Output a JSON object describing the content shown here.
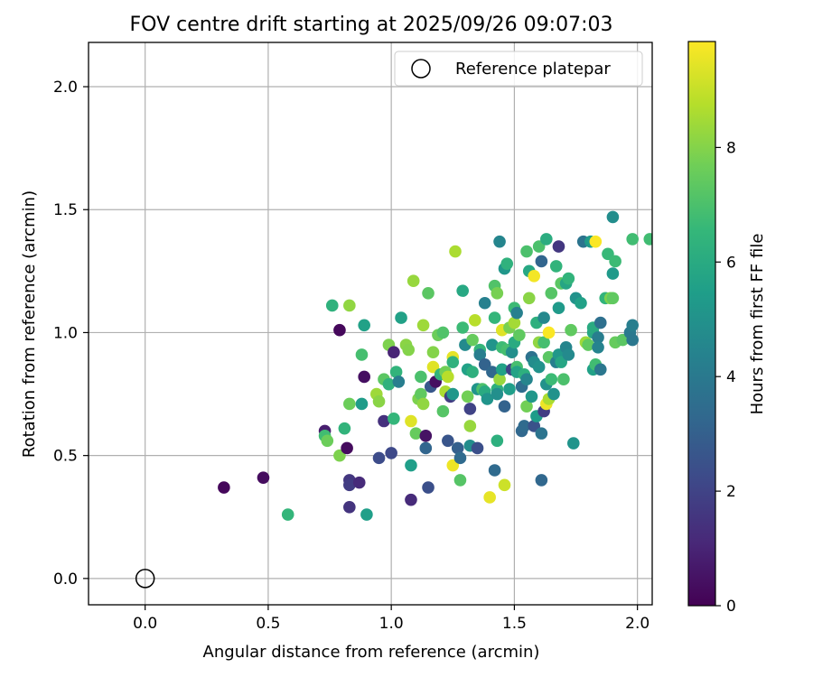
{
  "chart_data": {
    "type": "scatter",
    "title": "FOV centre drift starting at 2025/09/26 09:07:03",
    "xlabel": "Angular distance from reference (arcmin)",
    "ylabel": "Rotation from reference (arcmin)",
    "xlim": [
      -0.23,
      2.06
    ],
    "ylim": [
      -0.107,
      2.18
    ],
    "xticks": [
      {
        "value": 0.0,
        "label": "0.0"
      },
      {
        "value": 0.5,
        "label": "0.5"
      },
      {
        "value": 1.0,
        "label": "1.0"
      },
      {
        "value": 1.5,
        "label": "1.5"
      },
      {
        "value": 2.0,
        "label": "2.0"
      }
    ],
    "yticks": [
      {
        "value": 0.0,
        "label": "0.0"
      },
      {
        "value": 0.5,
        "label": "0.5"
      },
      {
        "value": 1.0,
        "label": "1.0"
      },
      {
        "value": 1.5,
        "label": "1.5"
      },
      {
        "value": 2.0,
        "label": "2.0"
      }
    ],
    "grid": true,
    "legend": {
      "position": "top-right",
      "entries": [
        {
          "label": "Reference platepar",
          "marker": "open-circle"
        }
      ]
    },
    "reference_point": {
      "x": 0.0,
      "y": 0.0,
      "label": "Reference platepar"
    },
    "colorbar": {
      "label": "Hours from first FF file",
      "cmap": "viridis",
      "range": [
        0,
        9.85
      ],
      "ticks": [
        {
          "value": 0,
          "label": "0"
        },
        {
          "value": 2,
          "label": "2"
        },
        {
          "value": 4,
          "label": "4"
        },
        {
          "value": 6,
          "label": "6"
        },
        {
          "value": 8,
          "label": "8"
        }
      ]
    },
    "colormap_stops": [
      "#440154",
      "#482878",
      "#3e4989",
      "#31688e",
      "#26828e",
      "#1f9e89",
      "#35b779",
      "#6ece58",
      "#b5de2b",
      "#fde725"
    ],
    "points": [
      [
        0.32,
        0.37,
        0.2
      ],
      [
        0.48,
        0.41,
        0.3
      ],
      [
        0.58,
        0.26,
        6.5
      ],
      [
        0.73,
        0.6,
        0.8
      ],
      [
        0.73,
        0.58,
        6.8
      ],
      [
        0.74,
        0.56,
        7.6
      ],
      [
        0.76,
        1.11,
        6.3
      ],
      [
        0.79,
        1.01,
        0.2
      ],
      [
        0.79,
        0.5,
        7.9
      ],
      [
        0.81,
        0.61,
        6.4
      ],
      [
        0.82,
        0.53,
        0.3
      ],
      [
        0.83,
        0.71,
        7.6
      ],
      [
        0.83,
        1.11,
        8.2
      ],
      [
        0.83,
        0.4,
        1.6
      ],
      [
        0.83,
        0.38,
        1.8
      ],
      [
        0.83,
        0.29,
        1.5
      ],
      [
        0.87,
        0.39,
        1.2
      ],
      [
        0.88,
        0.91,
        6.9
      ],
      [
        0.88,
        0.71,
        5.4
      ],
      [
        0.89,
        1.03,
        5.6
      ],
      [
        0.89,
        0.82,
        0.4
      ],
      [
        0.9,
        0.26,
        5.5
      ],
      [
        0.94,
        0.75,
        8.4
      ],
      [
        0.95,
        0.72,
        8.1
      ],
      [
        0.95,
        0.49,
        2.3
      ],
      [
        0.97,
        0.81,
        7.3
      ],
      [
        0.97,
        0.64,
        1.4
      ],
      [
        0.99,
        0.79,
        6.3
      ],
      [
        0.99,
        0.95,
        7.9
      ],
      [
        1.0,
        0.51,
        2.2
      ],
      [
        1.01,
        0.92,
        1.0
      ],
      [
        1.01,
        0.65,
        6.5
      ],
      [
        1.02,
        0.84,
        6.4
      ],
      [
        1.03,
        0.8,
        4.2
      ],
      [
        1.04,
        1.06,
        5.6
      ],
      [
        1.06,
        0.95,
        8.1
      ],
      [
        1.07,
        0.93,
        8.0
      ],
      [
        1.08,
        0.64,
        9.4
      ],
      [
        1.08,
        0.46,
        5.5
      ],
      [
        1.08,
        0.32,
        1.2
      ],
      [
        1.09,
        1.21,
        8.3
      ],
      [
        1.1,
        0.59,
        7.5
      ],
      [
        1.11,
        0.73,
        7.9
      ],
      [
        1.12,
        0.82,
        7.0
      ],
      [
        1.12,
        0.75,
        7.4
      ],
      [
        1.13,
        0.71,
        8.2
      ],
      [
        1.13,
        1.03,
        8.4
      ],
      [
        1.14,
        0.58,
        0.5
      ],
      [
        1.14,
        0.53,
        3.2
      ],
      [
        1.15,
        0.37,
        2.4
      ],
      [
        1.15,
        1.16,
        7.3
      ],
      [
        1.16,
        0.78,
        2.7
      ],
      [
        1.17,
        0.86,
        9.4
      ],
      [
        1.17,
        0.92,
        8.0
      ],
      [
        1.18,
        0.8,
        0.4
      ],
      [
        1.19,
        0.99,
        7.6
      ],
      [
        1.2,
        0.83,
        6.4
      ],
      [
        1.21,
        0.68,
        7.2
      ],
      [
        1.21,
        1.0,
        7.1
      ],
      [
        1.22,
        0.76,
        8.6
      ],
      [
        1.22,
        0.84,
        7.7
      ],
      [
        1.23,
        0.56,
        2.6
      ],
      [
        1.23,
        0.82,
        8.8
      ],
      [
        1.24,
        0.74,
        1.8
      ],
      [
        1.25,
        0.9,
        9.5
      ],
      [
        1.25,
        0.46,
        9.6
      ],
      [
        1.25,
        0.75,
        5.2
      ],
      [
        1.25,
        0.88,
        6.3
      ],
      [
        1.26,
        1.33,
        8.6
      ],
      [
        1.27,
        0.53,
        3.0
      ],
      [
        1.28,
        0.4,
        7.2
      ],
      [
        1.28,
        0.49,
        3.4
      ],
      [
        1.29,
        1.17,
        5.9
      ],
      [
        1.29,
        1.02,
        6.7
      ],
      [
        1.3,
        0.95,
        4.7
      ],
      [
        1.31,
        0.85,
        5.6
      ],
      [
        1.31,
        0.74,
        7.7
      ],
      [
        1.32,
        0.62,
        8.3
      ],
      [
        1.32,
        0.54,
        4.8
      ],
      [
        1.32,
        0.69,
        2.0
      ],
      [
        1.33,
        0.84,
        6.2
      ],
      [
        1.33,
        0.97,
        7.5
      ],
      [
        1.34,
        1.05,
        8.8
      ],
      [
        1.35,
        0.77,
        5.1
      ],
      [
        1.35,
        0.53,
        2.4
      ],
      [
        1.36,
        0.93,
        6.5
      ],
      [
        1.36,
        0.91,
        4.2
      ],
      [
        1.37,
        0.77,
        7.0
      ],
      [
        1.38,
        0.76,
        6.0
      ],
      [
        1.38,
        0.87,
        3.1
      ],
      [
        1.38,
        1.12,
        4.3
      ],
      [
        1.39,
        0.73,
        5.1
      ],
      [
        1.4,
        0.33,
        9.5
      ],
      [
        1.41,
        0.84,
        3.3
      ],
      [
        1.41,
        0.95,
        5.1
      ],
      [
        1.42,
        1.06,
        6.5
      ],
      [
        1.42,
        1.19,
        7.1
      ],
      [
        1.42,
        0.44,
        3.4
      ],
      [
        1.43,
        1.16,
        7.8
      ],
      [
        1.43,
        0.77,
        6.2
      ],
      [
        1.43,
        0.75,
        4.9
      ],
      [
        1.43,
        0.56,
        6.2
      ],
      [
        1.44,
        0.81,
        8.3
      ],
      [
        1.44,
        1.37,
        4.5
      ],
      [
        1.45,
        0.94,
        6.7
      ],
      [
        1.45,
        1.01,
        9.4
      ],
      [
        1.45,
        0.85,
        5.6
      ],
      [
        1.46,
        1.26,
        5.2
      ],
      [
        1.46,
        0.7,
        3.1
      ],
      [
        1.46,
        0.38,
        9.1
      ],
      [
        1.47,
        1.28,
        6.3
      ],
      [
        1.47,
        0.93,
        6.9
      ],
      [
        1.48,
        1.02,
        7.8
      ],
      [
        1.48,
        0.77,
        5.5
      ],
      [
        1.49,
        0.85,
        2.0
      ],
      [
        1.49,
        0.92,
        4.9
      ],
      [
        1.5,
        1.04,
        8.5
      ],
      [
        1.5,
        0.96,
        6.0
      ],
      [
        1.5,
        1.1,
        6.7
      ],
      [
        1.51,
        0.86,
        6.9
      ],
      [
        1.51,
        0.84,
        5.7
      ],
      [
        1.51,
        1.08,
        4.3
      ],
      [
        1.52,
        0.99,
        7.4
      ],
      [
        1.53,
        0.78,
        3.5
      ],
      [
        1.53,
        0.6,
        3.3
      ],
      [
        1.54,
        0.83,
        6.2
      ],
      [
        1.54,
        0.62,
        3.4
      ],
      [
        1.55,
        0.7,
        7.7
      ],
      [
        1.55,
        0.81,
        4.5
      ],
      [
        1.55,
        1.33,
        7.0
      ],
      [
        1.56,
        1.25,
        5.9
      ],
      [
        1.56,
        1.14,
        8.1
      ],
      [
        1.57,
        0.74,
        5.2
      ],
      [
        1.57,
        0.9,
        3.7
      ],
      [
        1.58,
        0.88,
        4.8
      ],
      [
        1.58,
        1.23,
        9.7
      ],
      [
        1.58,
        0.62,
        2.5
      ],
      [
        1.59,
        1.04,
        6.2
      ],
      [
        1.59,
        0.66,
        5.4
      ],
      [
        1.6,
        1.35,
        7.0
      ],
      [
        1.6,
        0.96,
        8.2
      ],
      [
        1.6,
        0.86,
        5.0
      ],
      [
        1.61,
        1.29,
        3.2
      ],
      [
        1.61,
        0.59,
        3.8
      ],
      [
        1.61,
        0.4,
        3.3
      ],
      [
        1.62,
        0.96,
        6.9
      ],
      [
        1.62,
        0.68,
        1.8
      ],
      [
        1.62,
        1.06,
        4.6
      ],
      [
        1.63,
        1.38,
        6.1
      ],
      [
        1.63,
        0.71,
        9.6
      ],
      [
        1.63,
        0.79,
        5.0
      ],
      [
        1.64,
        0.9,
        7.3
      ],
      [
        1.64,
        0.73,
        8.6
      ],
      [
        1.64,
        1.0,
        9.8
      ],
      [
        1.65,
        1.16,
        7.2
      ],
      [
        1.65,
        0.81,
        6.7
      ],
      [
        1.66,
        0.75,
        5.0
      ],
      [
        1.67,
        1.27,
        6.4
      ],
      [
        1.67,
        0.88,
        4.2
      ],
      [
        1.68,
        1.35,
        1.6
      ],
      [
        1.68,
        1.1,
        5.3
      ],
      [
        1.68,
        0.91,
        5.2
      ],
      [
        1.69,
        0.88,
        5.8
      ],
      [
        1.69,
        1.2,
        7.3
      ],
      [
        1.7,
        0.81,
        7.0
      ],
      [
        1.71,
        0.94,
        4.5
      ],
      [
        1.71,
        1.2,
        5.8
      ],
      [
        1.72,
        1.22,
        6.4
      ],
      [
        1.72,
        0.91,
        4.7
      ],
      [
        1.73,
        1.01,
        7.4
      ],
      [
        1.74,
        0.55,
        5.1
      ],
      [
        1.75,
        1.14,
        5.0
      ],
      [
        1.77,
        1.12,
        5.6
      ],
      [
        1.78,
        1.37,
        3.8
      ],
      [
        1.79,
        0.96,
        8.4
      ],
      [
        1.8,
        0.95,
        7.4
      ],
      [
        1.81,
        1.37,
        5.4
      ],
      [
        1.82,
        0.85,
        5.6
      ],
      [
        1.82,
        1.0,
        5.9
      ],
      [
        1.82,
        1.02,
        6.0
      ],
      [
        1.83,
        1.37,
        9.8
      ],
      [
        1.83,
        0.87,
        6.8
      ],
      [
        1.84,
        0.98,
        4.2
      ],
      [
        1.84,
        0.94,
        4.4
      ],
      [
        1.85,
        0.85,
        3.9
      ],
      [
        1.85,
        1.04,
        3.6
      ],
      [
        1.87,
        1.14,
        6.4
      ],
      [
        1.88,
        1.32,
        6.6
      ],
      [
        1.89,
        1.14,
        7.9
      ],
      [
        1.9,
        1.47,
        4.8
      ],
      [
        1.9,
        1.24,
        5.3
      ],
      [
        1.9,
        1.14,
        7.4
      ],
      [
        1.91,
        1.29,
        6.7
      ],
      [
        1.91,
        0.96,
        7.5
      ],
      [
        1.94,
        0.97,
        7.3
      ],
      [
        1.97,
        1.0,
        4.0
      ],
      [
        1.98,
        1.03,
        4.2
      ],
      [
        1.98,
        0.97,
        3.9
      ],
      [
        1.98,
        1.38,
        6.8
      ],
      [
        2.05,
        1.38,
        6.8
      ]
    ]
  }
}
